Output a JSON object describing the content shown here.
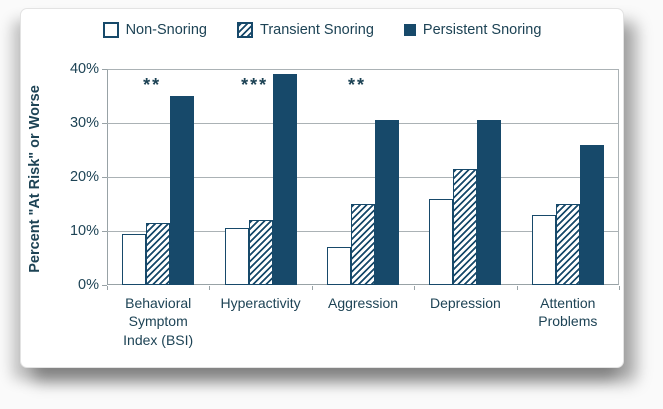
{
  "chart_data": {
    "type": "bar",
    "title": "",
    "ylabel": "Percent \"At Risk\" or Worse",
    "xlabel": "",
    "categories": [
      "Behavioral\nSymptom\nIndex (BSI)",
      "Hyperactivity",
      "Aggression",
      "Depression",
      "Attention\nProblems"
    ],
    "series": [
      {
        "name": "Non-Snoring",
        "pattern": "outline",
        "values": [
          9.5,
          10.5,
          7,
          16,
          13
        ]
      },
      {
        "name": "Transient Snoring",
        "pattern": "hatch",
        "values": [
          11.5,
          12,
          15,
          21.5,
          15
        ]
      },
      {
        "name": "Persistent Snoring",
        "pattern": "solid",
        "values": [
          35,
          39,
          30.5,
          30.5,
          26
        ]
      }
    ],
    "annotations": [
      "**",
      "***",
      "**",
      "",
      ""
    ],
    "ylim": [
      0,
      40
    ],
    "yticks": [
      0,
      10,
      20,
      30,
      40
    ],
    "ytick_labels": [
      "0%",
      "10%",
      "20%",
      "30%",
      "40%"
    ],
    "grid": true,
    "legend_position": "top"
  },
  "colors": {
    "bar": "#17496A",
    "text": "#1D4355",
    "gridline": "#ABB2B5",
    "axis": "#98A2A6",
    "background": "#FFFFFF",
    "page_background": "#FAFAFA"
  }
}
